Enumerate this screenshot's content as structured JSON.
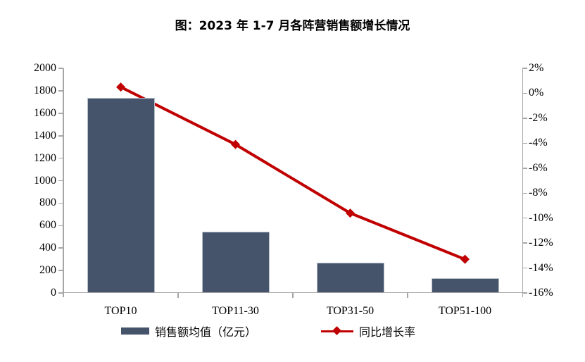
{
  "title": "图：2023 年 1-7 月各阵营销售额增长情况",
  "chart_data": {
    "type": "bar+line",
    "categories": [
      "TOP10",
      "TOP11-30",
      "TOP31-50",
      "TOP51-100"
    ],
    "series": [
      {
        "name": "销售额均值（亿元）",
        "type": "bar",
        "axis": "left",
        "values": [
          1730,
          535,
          260,
          120
        ],
        "color": "#45536B"
      },
      {
        "name": "同比增长率",
        "type": "line",
        "axis": "right",
        "marker": "diamond",
        "values_pct": [
          0.5,
          -4.1,
          -9.6,
          -13.3
        ],
        "color": "#C00000"
      }
    ],
    "left_axis": {
      "min": 0,
      "max": 2000,
      "step": 200,
      "tick_labels": [
        "2000",
        "1800",
        "1600",
        "1400",
        "1200",
        "1000",
        "800",
        "600",
        "400",
        "200",
        "0"
      ]
    },
    "right_axis": {
      "min": -16,
      "max": 2,
      "step": 2,
      "tick_labels": [
        "2%",
        "0%",
        "-2%",
        "-4%",
        "-6%",
        "-8%",
        "-10%",
        "-12%",
        "-14%",
        "-16%"
      ]
    },
    "grid": false,
    "legend_position": "bottom",
    "axis_color": "#a6a6a6",
    "text_color": "#000000",
    "background": "#ffffff"
  }
}
